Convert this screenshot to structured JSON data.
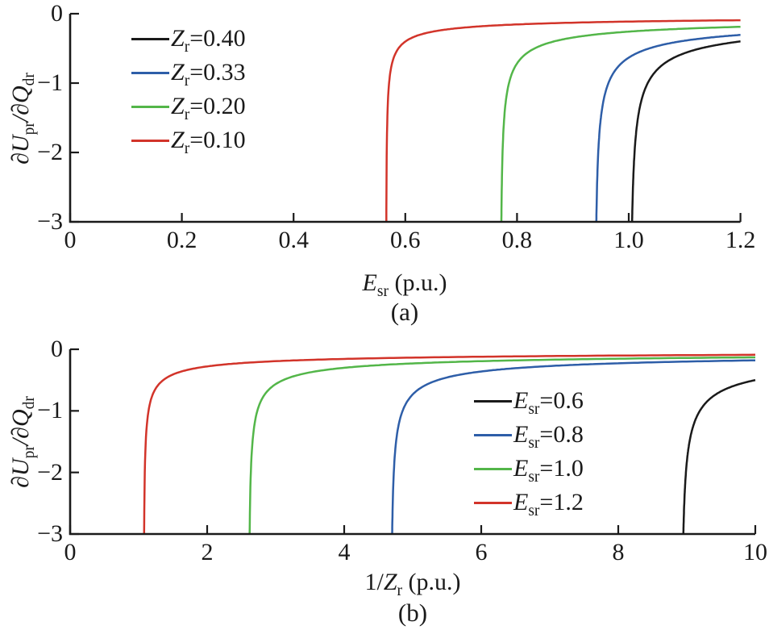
{
  "figure": {
    "background": "#ffffff",
    "axis_color": "#1a1a1a",
    "description": "Two stacked sensitivity plots of dUpr/dQdr versus Esr and 1/Zr"
  },
  "chart_data": [
    {
      "id": "a",
      "type": "line",
      "caption": "(a)",
      "xlabel": {
        "pre": "",
        "main": "E",
        "sub": "sr",
        "rest": " (p.u.)"
      },
      "ylabel": {
        "p1": "∂U",
        "s1": "pr",
        "p2": "/∂Q",
        "s2": "dr"
      },
      "xlim": [
        0,
        1.2
      ],
      "ylim": [
        -3,
        0
      ],
      "grid": false,
      "xticks": [
        0,
        0.2,
        0.4,
        0.6,
        0.8,
        1.0,
        1.2
      ],
      "xtick_labels": [
        "0",
        "0.2",
        "0.4",
        "0.6",
        "0.8",
        "1.0",
        "1.2"
      ],
      "yticks": [
        0,
        -1,
        -2,
        -3
      ],
      "ytick_labels": [
        "0",
        "−1",
        "−2",
        "−3"
      ],
      "legend": {
        "position": "upper-left",
        "items": [
          {
            "sym": "Z",
            "sub": "r",
            "val": "=0.40",
            "color": "#1a1a1a"
          },
          {
            "sym": "Z",
            "sub": "r",
            "val": "=0.33",
            "color": "#2e5ea8"
          },
          {
            "sym": "Z",
            "sub": "r",
            "val": "=0.20",
            "color": "#53b649"
          },
          {
            "sym": "Z",
            "sub": "r",
            "val": "=0.10",
            "color": "#d2342a"
          }
        ]
      },
      "series": [
        {
          "name": "Zr=0.40",
          "color": "#1a1a1a",
          "collapse_x": 1.006,
          "model": {
            "xc": 1.0025,
            "A": 0.1775
          },
          "points": [
            [
              1.006,
              -3.0
            ],
            [
              1.01,
              -2.05
            ],
            [
              1.02,
              -1.34
            ],
            [
              1.04,
              -0.92
            ],
            [
              1.06,
              -0.74
            ],
            [
              1.08,
              -0.64
            ],
            [
              1.1,
              -0.57
            ],
            [
              1.15,
              -0.46
            ],
            [
              1.2,
              -0.4
            ]
          ]
        },
        {
          "name": "Zr=0.33",
          "color": "#2e5ea8",
          "collapse_x": 0.942,
          "model": {
            "xc": 0.9393,
            "A": 0.156
          },
          "points": [
            [
              0.942,
              -3.0
            ],
            [
              0.95,
              -1.51
            ],
            [
              0.96,
              -1.08
            ],
            [
              0.98,
              -0.77
            ],
            [
              1.0,
              -0.63
            ],
            [
              1.05,
              -0.47
            ],
            [
              1.1,
              -0.39
            ],
            [
              1.15,
              -0.34
            ],
            [
              1.2,
              -0.31
            ]
          ]
        },
        {
          "name": "Zr=0.20",
          "color": "#53b649",
          "collapse_x": 0.772,
          "model": {
            "xc": 0.7703,
            "A": 0.1237
          },
          "points": [
            [
              0.772,
              -3.0
            ],
            [
              0.78,
              -1.26
            ],
            [
              0.8,
              -0.72
            ],
            [
              0.85,
              -0.44
            ],
            [
              0.9,
              -0.34
            ],
            [
              0.95,
              -0.29
            ],
            [
              1.0,
              -0.26
            ],
            [
              1.1,
              -0.22
            ],
            [
              1.2,
              -0.19
            ]
          ]
        },
        {
          "name": "Zr=0.10",
          "color": "#d2342a",
          "collapse_x": 0.566,
          "model": {
            "xc": 0.5654,
            "A": 0.0747
          },
          "points": [
            [
              0.566,
              -3.0
            ],
            [
              0.57,
              -1.1
            ],
            [
              0.58,
              -0.62
            ],
            [
              0.6,
              -0.4
            ],
            [
              0.65,
              -0.26
            ],
            [
              0.7,
              -0.2
            ],
            [
              0.8,
              -0.15
            ],
            [
              0.9,
              -0.13
            ],
            [
              1.0,
              -0.11
            ],
            [
              1.2,
              -0.09
            ]
          ]
        }
      ]
    },
    {
      "id": "b",
      "type": "line",
      "caption": "(b)",
      "xlabel": {
        "pre": "1/",
        "main": "Z",
        "sub": "r",
        "rest": " (p.u.)"
      },
      "ylabel": {
        "p1": "∂U",
        "s1": "pr",
        "p2": "/∂Q",
        "s2": "dr"
      },
      "xlim": [
        0,
        10
      ],
      "ylim": [
        -3,
        0
      ],
      "grid": false,
      "xticks": [
        0,
        2,
        4,
        6,
        8,
        10
      ],
      "xtick_labels": [
        "0",
        "2",
        "4",
        "6",
        "8",
        "10"
      ],
      "yticks": [
        0,
        -1,
        -2,
        -3
      ],
      "ytick_labels": [
        "0",
        "−1",
        "−2",
        "−3"
      ],
      "legend": {
        "position": "center-right",
        "items": [
          {
            "sym": "E",
            "sub": "sr",
            "val": "=0.6",
            "color": "#1a1a1a"
          },
          {
            "sym": "E",
            "sub": "sr",
            "val": "=0.8",
            "color": "#2e5ea8"
          },
          {
            "sym": "E",
            "sub": "sr",
            "val": "=1.0",
            "color": "#53b649"
          },
          {
            "sym": "E",
            "sub": "sr",
            "val": "=1.2",
            "color": "#d2342a"
          }
        ]
      },
      "series": [
        {
          "name": "Esr=0.6",
          "color": "#1a1a1a",
          "collapse_x": 8.95,
          "model": {
            "xc": 8.92,
            "A": 0.52
          },
          "points": [
            [
              8.95,
              -3.0
            ],
            [
              9.0,
              -1.84
            ],
            [
              9.1,
              -1.23
            ],
            [
              9.2,
              -0.98
            ],
            [
              9.4,
              -0.75
            ],
            [
              9.6,
              -0.63
            ],
            [
              9.8,
              -0.55
            ],
            [
              10.0,
              -0.5
            ]
          ]
        },
        {
          "name": "Esr=0.8",
          "color": "#2e5ea8",
          "collapse_x": 4.7,
          "model": {
            "xc": 4.681,
            "A": 0.414
          },
          "points": [
            [
              4.7,
              -3.0
            ],
            [
              4.75,
              -1.58
            ],
            [
              4.8,
              -1.2
            ],
            [
              5.0,
              -0.73
            ],
            [
              5.5,
              -0.46
            ],
            [
              6.0,
              -0.36
            ],
            [
              7.0,
              -0.27
            ],
            [
              8.0,
              -0.23
            ],
            [
              9.0,
              -0.2
            ],
            [
              10.0,
              -0.18
            ]
          ]
        },
        {
          "name": "Esr=1.0",
          "color": "#53b649",
          "collapse_x": 2.62,
          "model": {
            "xc": 2.606,
            "A": 0.355
          },
          "points": [
            [
              2.62,
              -3.0
            ],
            [
              2.65,
              -1.69
            ],
            [
              2.7,
              -1.16
            ],
            [
              2.8,
              -0.81
            ],
            [
              3.0,
              -0.57
            ],
            [
              3.5,
              -0.38
            ],
            [
              4.0,
              -0.3
            ],
            [
              5.0,
              -0.23
            ],
            [
              6.0,
              -0.19
            ],
            [
              8.0,
              -0.15
            ],
            [
              10.0,
              -0.13
            ]
          ]
        },
        {
          "name": "Esr=1.2",
          "color": "#d2342a",
          "collapse_x": 1.08,
          "model": {
            "xc": 1.072,
            "A": 0.268
          },
          "points": [
            [
              1.08,
              -3.0
            ],
            [
              1.1,
              -1.6
            ],
            [
              1.2,
              -0.75
            ],
            [
              1.5,
              -0.41
            ],
            [
              2.0,
              -0.28
            ],
            [
              3.0,
              -0.19
            ],
            [
              4.0,
              -0.16
            ],
            [
              6.0,
              -0.12
            ],
            [
              8.0,
              -0.1
            ],
            [
              10.0,
              -0.09
            ]
          ]
        }
      ]
    }
  ]
}
